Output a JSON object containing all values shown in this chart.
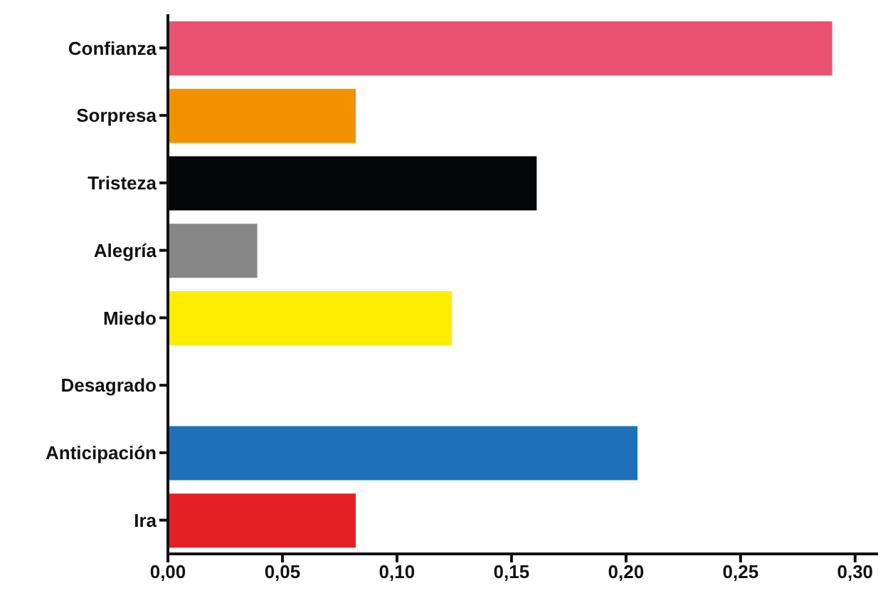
{
  "chart_data": {
    "type": "bar",
    "orientation": "horizontal",
    "categories": [
      "Confianza",
      "Sorpresa",
      "Tristeza",
      "Alegría",
      "Miedo",
      "Desagrado",
      "Anticipación",
      "Ira"
    ],
    "values": [
      0.29,
      0.082,
      0.161,
      0.039,
      0.124,
      0,
      0.205,
      0.082
    ],
    "colors": [
      "#e95270",
      "#f39200",
      "#040507",
      "#868786",
      "#ffed00",
      "#ffffff",
      "#1e71b8",
      "#e52024"
    ],
    "xlim": [
      0,
      0.31
    ],
    "xticks": [
      {
        "value": 0,
        "label": "0,00"
      },
      {
        "value": 0.05,
        "label": "0,05"
      },
      {
        "value": 0.1,
        "label": "0,10"
      },
      {
        "value": 0.15,
        "label": "0,15"
      },
      {
        "value": 0.2,
        "label": "0,20"
      },
      {
        "value": 0.25,
        "label": "0,25"
      },
      {
        "value": 0.3,
        "label": "0,30"
      }
    ]
  }
}
